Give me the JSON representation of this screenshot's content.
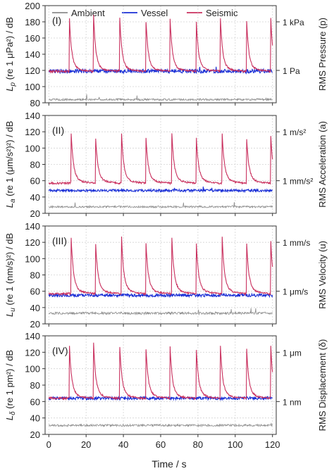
{
  "legend": {
    "placement": "top",
    "items": [
      {
        "label": "Ambient",
        "color": "#8c8c8c"
      },
      {
        "label": "Vessel",
        "color": "#1a2fd6"
      },
      {
        "label": "Seismic",
        "color": "#c9305e"
      }
    ]
  },
  "shared_x": {
    "label": "Time / s",
    "ticks": [
      0,
      20,
      40,
      60,
      80,
      100,
      120
    ],
    "xlim": [
      -2,
      122
    ]
  },
  "chart_data": [
    {
      "type": "line",
      "panel": "(I)",
      "ylabel": "L_p (re 1 μPa²) / dB",
      "ylabel_main": "L",
      "ylabel_sub": "p",
      "ylabel_rest": " (re 1 μPa²) / dB",
      "y2label": "RMS Pressure (p)",
      "ylim": [
        80,
        200
      ],
      "yticks": [
        80,
        100,
        120,
        140,
        160,
        180,
        200
      ],
      "y2ticks": [
        {
          "label": "1 kPa",
          "value": 180
        },
        {
          "label": "1 Pa",
          "value": 120
        }
      ],
      "grid": true,
      "series": [
        {
          "name": "Ambient",
          "baseline": 84,
          "noise": 1.2
        },
        {
          "name": "Vessel",
          "baseline": 119,
          "noise": 2.5
        },
        {
          "name": "Seismic",
          "baseline": 119,
          "peak": 177,
          "decay_level": 140,
          "noise": 1.5,
          "pulse_times": [
            11,
            24,
            38,
            52,
            65,
            79,
            92,
            106,
            119
          ]
        }
      ]
    },
    {
      "type": "line",
      "panel": "(II)",
      "ylabel": "L_a (re 1 (μm/s²)²) / dB",
      "ylabel_main": "L",
      "ylabel_sub": "a",
      "ylabel_rest": " (re 1 (μm/s²)²) / dB",
      "y2label": "RMS Acceleration (a)",
      "ylim": [
        20,
        140
      ],
      "yticks": [
        20,
        40,
        60,
        80,
        100,
        120,
        140
      ],
      "y2ticks": [
        {
          "label": "1 m/s²",
          "value": 120
        },
        {
          "label": "1 mm/s²",
          "value": 60
        }
      ],
      "grid": true,
      "series": [
        {
          "name": "Ambient",
          "baseline": 28,
          "noise": 1.2
        },
        {
          "name": "Vessel",
          "baseline": 48,
          "noise": 1.5
        },
        {
          "name": "Seismic",
          "baseline": 57,
          "peak": 106,
          "decay_level": 80,
          "noise": 1.2,
          "pulse_times": [
            12,
            25,
            39,
            52,
            66,
            79,
            93,
            106,
            119
          ]
        }
      ]
    },
    {
      "type": "line",
      "panel": "(III)",
      "ylabel": "L_u (re 1 (nm/s)²) / dB",
      "ylabel_main": "L",
      "ylabel_sub": "u",
      "ylabel_rest": " (re 1 (nm/s)²) / dB",
      "y2label": "RMS Velocity (u)",
      "ylim": [
        20,
        140
      ],
      "yticks": [
        20,
        40,
        60,
        80,
        100,
        120,
        140
      ],
      "y2ticks": [
        {
          "label": "1 mm/s",
          "value": 120
        },
        {
          "label": "1 μm/s",
          "value": 60
        }
      ],
      "grid": true,
      "series": [
        {
          "name": "Ambient",
          "baseline": 33,
          "noise": 1.5
        },
        {
          "name": "Vessel",
          "baseline": 55,
          "noise": 1.8
        },
        {
          "name": "Seismic",
          "baseline": 57,
          "peak": 112,
          "decay_level": 83,
          "noise": 1.3,
          "pulse_times": [
            12,
            25,
            39,
            52,
            66,
            79,
            93,
            106,
            119
          ]
        }
      ]
    },
    {
      "type": "line",
      "panel": "(IV)",
      "ylabel": "L_δ (re 1 pm²) / dB",
      "ylabel_main": "L",
      "ylabel_sub": "δ",
      "ylabel_rest": " (re 1 pm²) / dB",
      "y2label": "RMS Displacement (δ)",
      "ylim": [
        20,
        140
      ],
      "yticks": [
        20,
        40,
        60,
        80,
        100,
        120,
        140
      ],
      "y2ticks": [
        {
          "label": "1 μm",
          "value": 120
        },
        {
          "label": "1 nm",
          "value": 60
        }
      ],
      "grid": true,
      "series": [
        {
          "name": "Ambient",
          "baseline": 31,
          "noise": 1.3
        },
        {
          "name": "Vessel",
          "baseline": 64,
          "noise": 1.8
        },
        {
          "name": "Seismic",
          "baseline": 64,
          "peak": 118,
          "decay_level": 88,
          "noise": 1.3,
          "pulse_times": [
            11,
            24,
            38,
            52,
            65,
            79,
            92,
            106,
            119
          ]
        }
      ]
    }
  ]
}
